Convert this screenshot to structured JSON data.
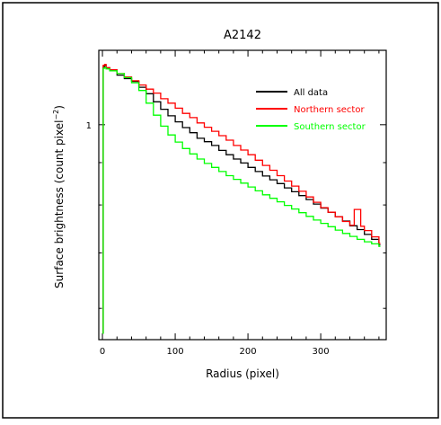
{
  "figure": {
    "border_color": "#000000",
    "background": "#ffffff"
  },
  "chart_data": {
    "type": "line",
    "title": "A2142",
    "xlabel": "Radius (pixel)",
    "ylabel": "Surface brightness (count pixel",
    "ylabel_superscript": "−2",
    "ylabel_suffix": ")",
    "x_scale": "linear",
    "y_scale": "log",
    "xlim": [
      -5,
      390
    ],
    "ylim": [
      0.55,
      1.23
    ],
    "x_ticks": [
      0,
      100,
      200,
      300
    ],
    "y_ticks": [
      1
    ],
    "x_tick_labels": [
      "0",
      "100",
      "200",
      "300"
    ],
    "y_tick_labels": [
      "1"
    ],
    "grid": false,
    "legend_position": "top-right",
    "series": [
      {
        "name": "All data",
        "color": "#000000",
        "x": [
          0,
          1,
          3,
          5,
          10,
          20,
          30,
          40,
          50,
          60,
          70,
          80,
          90,
          100,
          110,
          120,
          130,
          140,
          150,
          160,
          170,
          180,
          190,
          200,
          210,
          220,
          230,
          240,
          250,
          260,
          270,
          280,
          290,
          300,
          310,
          320,
          330,
          340,
          350,
          360,
          370,
          380
        ],
        "y": [
          0.56,
          1.175,
          1.18,
          1.17,
          1.162,
          1.148,
          1.137,
          1.128,
          1.11,
          1.09,
          1.066,
          1.044,
          1.025,
          1.008,
          0.992,
          0.978,
          0.963,
          0.954,
          0.944,
          0.931,
          0.92,
          0.909,
          0.899,
          0.888,
          0.878,
          0.867,
          0.858,
          0.849,
          0.839,
          0.83,
          0.821,
          0.812,
          0.802,
          0.793,
          0.784,
          0.774,
          0.765,
          0.755,
          0.747,
          0.737,
          0.727,
          0.716
        ]
      },
      {
        "name": "Northern sector",
        "color": "#ff0000",
        "x": [
          0,
          1,
          3,
          5,
          10,
          20,
          30,
          40,
          50,
          60,
          70,
          80,
          90,
          100,
          110,
          120,
          130,
          140,
          150,
          160,
          170,
          180,
          190,
          200,
          210,
          220,
          230,
          240,
          250,
          260,
          270,
          280,
          290,
          300,
          310,
          320,
          330,
          340,
          346,
          350,
          355,
          360,
          370,
          380
        ],
        "y": [
          0.56,
          1.18,
          1.183,
          1.172,
          1.165,
          1.153,
          1.142,
          1.13,
          1.117,
          1.104,
          1.092,
          1.075,
          1.062,
          1.047,
          1.032,
          1.02,
          1.005,
          0.993,
          0.982,
          0.97,
          0.958,
          0.944,
          0.932,
          0.92,
          0.906,
          0.893,
          0.881,
          0.868,
          0.855,
          0.843,
          0.831,
          0.818,
          0.806,
          0.794,
          0.784,
          0.774,
          0.764,
          0.756,
          0.79,
          0.79,
          0.754,
          0.745,
          0.732,
          0.719
        ]
      },
      {
        "name": "Southern sector",
        "color": "#00ff00",
        "x": [
          0,
          1,
          3,
          5,
          10,
          20,
          30,
          40,
          50,
          60,
          70,
          80,
          90,
          100,
          110,
          120,
          130,
          140,
          150,
          160,
          170,
          180,
          190,
          200,
          210,
          220,
          230,
          240,
          250,
          260,
          270,
          280,
          290,
          300,
          310,
          320,
          330,
          340,
          350,
          360,
          370,
          380
        ],
        "y": [
          0.56,
          1.17,
          1.173,
          1.168,
          1.162,
          1.153,
          1.14,
          1.124,
          1.1,
          1.062,
          1.027,
          0.996,
          0.972,
          0.953,
          0.936,
          0.922,
          0.909,
          0.898,
          0.888,
          0.878,
          0.868,
          0.859,
          0.85,
          0.841,
          0.832,
          0.823,
          0.815,
          0.807,
          0.799,
          0.791,
          0.783,
          0.775,
          0.767,
          0.76,
          0.753,
          0.746,
          0.739,
          0.733,
          0.727,
          0.722,
          0.718,
          0.713
        ]
      }
    ]
  }
}
